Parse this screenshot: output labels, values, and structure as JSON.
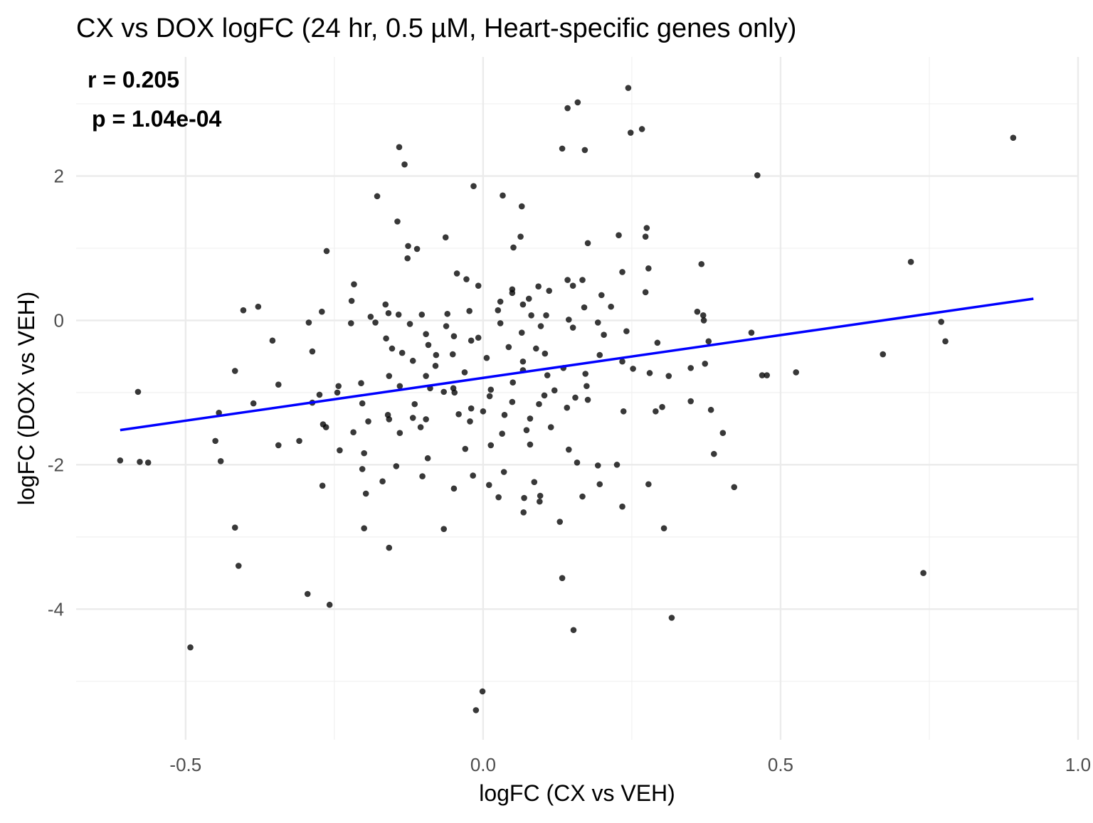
{
  "chart_data": {
    "type": "scatter",
    "title": "CX vs DOX logFC (24 hr, 0.5 µM, Heart-specific genes only)",
    "xlabel": "logFC (CX vs VEH)",
    "ylabel": "logFC (DOX vs VEH)",
    "annotations": [
      "r = 0.205",
      "p = 1.04e-04"
    ],
    "xlim": [
      -0.684,
      1.0
    ],
    "ylim": [
      -5.81,
      3.65
    ],
    "xticks": [
      -0.5,
      0.0,
      0.5,
      1.0
    ],
    "xtick_labels": [
      "-0.5",
      "0.0",
      "0.5",
      "1.0"
    ],
    "yticks": [
      -4,
      -2,
      0,
      2
    ],
    "ytick_labels": [
      "-4",
      "-2",
      "0",
      "2"
    ],
    "grid": true,
    "point_color": "#000000",
    "fit_line_color": "#0000ff",
    "fit_line": {
      "x": [
        -0.61,
        0.925
      ],
      "y": [
        -1.52,
        0.3
      ]
    },
    "points": [
      [
        0.244,
        3.22
      ],
      [
        0.159,
        3.02
      ],
      [
        0.142,
        2.94
      ],
      [
        0.248,
        2.6
      ],
      [
        0.267,
        2.65
      ],
      [
        0.133,
        2.38
      ],
      [
        0.171,
        2.36
      ],
      [
        0.891,
        2.53
      ],
      [
        -0.141,
        2.4
      ],
      [
        -0.132,
        2.16
      ],
      [
        -0.016,
        1.86
      ],
      [
        0.033,
        1.73
      ],
      [
        -0.178,
        1.72
      ],
      [
        0.065,
        1.58
      ],
      [
        -0.144,
        1.37
      ],
      [
        0.461,
        2.01
      ],
      [
        0.275,
        1.28
      ],
      [
        0.228,
        1.18
      ],
      [
        0.063,
        1.16
      ],
      [
        -0.063,
        1.15
      ],
      [
        0.273,
        1.16
      ],
      [
        0.176,
        1.07
      ],
      [
        -0.126,
        1.03
      ],
      [
        -0.111,
        0.99
      ],
      [
        0.051,
        1.01
      ],
      [
        -0.127,
        0.86
      ],
      [
        -0.263,
        0.96
      ],
      [
        0.367,
        0.78
      ],
      [
        0.719,
        0.81
      ],
      [
        0.278,
        0.72
      ],
      [
        0.234,
        0.67
      ],
      [
        -0.044,
        0.65
      ],
      [
        -0.028,
        0.57
      ],
      [
        0.142,
        0.56
      ],
      [
        0.167,
        0.56
      ],
      [
        -0.217,
        0.5
      ],
      [
        0.151,
        0.48
      ],
      [
        0.093,
        0.47
      ],
      [
        -0.008,
        0.48
      ],
      [
        0.111,
        0.41
      ],
      [
        0.049,
        0.43
      ],
      [
        0.049,
        0.38
      ],
      [
        0.273,
        0.39
      ],
      [
        0.199,
        0.35
      ],
      [
        0.077,
        0.3
      ],
      [
        -0.221,
        0.27
      ],
      [
        -0.164,
        0.22
      ],
      [
        0.029,
        0.26
      ],
      [
        0.067,
        0.22
      ],
      [
        0.215,
        0.19
      ],
      [
        -0.378,
        0.19
      ],
      [
        -0.403,
        0.14
      ],
      [
        0.17,
        0.18
      ],
      [
        -0.271,
        0.12
      ],
      [
        -0.159,
        0.1
      ],
      [
        -0.189,
        0.05
      ],
      [
        -0.103,
        0.08
      ],
      [
        -0.142,
        0.08
      ],
      [
        -0.06,
        0.09
      ],
      [
        -0.023,
        0.13
      ],
      [
        0.025,
        0.14
      ],
      [
        0.36,
        0.12
      ],
      [
        0.37,
        0.07
      ],
      [
        0.106,
        0.07
      ],
      [
        0.081,
        0.07
      ],
      [
        0.144,
        0.01
      ],
      [
        0.193,
        -0.03
      ],
      [
        0.029,
        -0.04
      ],
      [
        0.371,
        0.0
      ],
      [
        -0.293,
        -0.03
      ],
      [
        -0.222,
        -0.04
      ],
      [
        -0.181,
        -0.03
      ],
      [
        -0.123,
        -0.05
      ],
      [
        -0.062,
        -0.08
      ],
      [
        0.77,
        -0.02
      ],
      [
        0.151,
        -0.1
      ],
      [
        0.097,
        -0.08
      ],
      [
        0.451,
        -0.17
      ],
      [
        0.241,
        -0.15
      ],
      [
        0.203,
        -0.2
      ],
      [
        -0.096,
        -0.19
      ],
      [
        0.065,
        -0.17
      ],
      [
        -0.049,
        -0.22
      ],
      [
        -0.008,
        -0.24
      ],
      [
        -0.354,
        -0.28
      ],
      [
        -0.163,
        -0.25
      ],
      [
        -0.02,
        -0.28
      ],
      [
        0.379,
        -0.29
      ],
      [
        0.777,
        -0.29
      ],
      [
        0.293,
        -0.31
      ],
      [
        -0.092,
        -0.34
      ],
      [
        0.043,
        -0.37
      ],
      [
        -0.153,
        -0.39
      ],
      [
        0.089,
        -0.39
      ],
      [
        -0.287,
        -0.43
      ],
      [
        -0.136,
        -0.45
      ],
      [
        0.104,
        -0.46
      ],
      [
        -0.051,
        -0.47
      ],
      [
        0.672,
        -0.47
      ],
      [
        -0.079,
        -0.48
      ],
      [
        0.196,
        -0.48
      ],
      [
        0.006,
        -0.52
      ],
      [
        -0.118,
        -0.56
      ],
      [
        0.234,
        -0.57
      ],
      [
        0.067,
        -0.57
      ],
      [
        0.373,
        -0.6
      ],
      [
        -0.08,
        -0.63
      ],
      [
        0.135,
        -0.66
      ],
      [
        0.349,
        -0.66
      ],
      [
        0.252,
        -0.67
      ],
      [
        -0.417,
        -0.7
      ],
      [
        -0.031,
        -0.72
      ],
      [
        0.067,
        -0.69
      ],
      [
        0.526,
        -0.72
      ],
      [
        0.28,
        -0.73
      ],
      [
        0.469,
        -0.76
      ],
      [
        0.477,
        -0.76
      ],
      [
        0.312,
        -0.77
      ],
      [
        -0.158,
        -0.77
      ],
      [
        -0.096,
        -0.77
      ],
      [
        0.108,
        -0.76
      ],
      [
        0.172,
        -0.74
      ],
      [
        0.05,
        -0.86
      ],
      [
        -0.344,
        -0.89
      ],
      [
        -0.243,
        -0.91
      ],
      [
        -0.14,
        -0.91
      ],
      [
        0.174,
        -0.91
      ],
      [
        -0.205,
        -0.87
      ],
      [
        -0.089,
        -0.94
      ],
      [
        -0.05,
        -0.94
      ],
      [
        0.013,
        -0.96
      ],
      [
        -0.066,
        -0.99
      ],
      [
        0.12,
        -0.97
      ],
      [
        -0.245,
        -1.0
      ],
      [
        -0.275,
        -1.03
      ],
      [
        -0.58,
        -0.99
      ],
      [
        -0.048,
        -1.0
      ],
      [
        0.011,
        -1.05
      ],
      [
        0.103,
        -1.04
      ],
      [
        0.155,
        -1.07
      ],
      [
        0.176,
        -1.1
      ],
      [
        -0.386,
        -1.15
      ],
      [
        -0.287,
        -1.14
      ],
      [
        0.349,
        -1.12
      ],
      [
        -0.203,
        -1.15
      ],
      [
        0.049,
        -1.13
      ],
      [
        -0.115,
        -1.16
      ],
      [
        0.094,
        -1.16
      ],
      [
        0.301,
        -1.2
      ],
      [
        0.383,
        -1.24
      ],
      [
        0.141,
        -1.21
      ],
      [
        -0.02,
        -1.22
      ],
      [
        0.0,
        -1.26
      ],
      [
        0.29,
        -1.26
      ],
      [
        0.236,
        -1.26
      ],
      [
        -0.444,
        -1.28
      ],
      [
        -0.041,
        -1.3
      ],
      [
        -0.16,
        -1.31
      ],
      [
        0.036,
        -1.31
      ],
      [
        -0.118,
        -1.35
      ],
      [
        -0.158,
        -1.37
      ],
      [
        -0.096,
        -1.37
      ],
      [
        -0.193,
        -1.4
      ],
      [
        0.079,
        -1.36
      ],
      [
        -0.022,
        -1.4
      ],
      [
        -0.269,
        -1.44
      ],
      [
        -0.264,
        -1.48
      ],
      [
        -0.105,
        -1.48
      ],
      [
        0.114,
        -1.48
      ],
      [
        0.403,
        -1.56
      ],
      [
        -0.218,
        -1.55
      ],
      [
        -0.14,
        -1.56
      ],
      [
        0.032,
        -1.57
      ],
      [
        0.073,
        -1.52
      ],
      [
        -0.45,
        -1.67
      ],
      [
        -0.309,
        -1.67
      ],
      [
        -0.344,
        -1.73
      ],
      [
        0.079,
        -1.72
      ],
      [
        0.013,
        -1.73
      ],
      [
        -0.03,
        -1.78
      ],
      [
        -0.241,
        -1.8
      ],
      [
        0.144,
        -1.79
      ],
      [
        0.388,
        -1.85
      ],
      [
        -0.2,
        -1.84
      ],
      [
        -0.093,
        -1.91
      ],
      [
        -0.61,
        -1.94
      ],
      [
        -0.577,
        -1.96
      ],
      [
        -0.563,
        -1.97
      ],
      [
        -0.441,
        -1.95
      ],
      [
        -0.146,
        -2.02
      ],
      [
        0.158,
        -1.97
      ],
      [
        0.193,
        -2.01
      ],
      [
        0.225,
        -2.0
      ],
      [
        -0.203,
        -2.06
      ],
      [
        0.035,
        -2.1
      ],
      [
        -0.017,
        -2.15
      ],
      [
        -0.102,
        -2.16
      ],
      [
        -0.169,
        -2.23
      ],
      [
        0.086,
        -2.24
      ],
      [
        0.196,
        -2.27
      ],
      [
        0.01,
        -2.28
      ],
      [
        0.278,
        -2.27
      ],
      [
        -0.27,
        -2.29
      ],
      [
        0.422,
        -2.31
      ],
      [
        -0.049,
        -2.33
      ],
      [
        -0.197,
        -2.4
      ],
      [
        0.096,
        -2.43
      ],
      [
        0.026,
        -2.45
      ],
      [
        0.069,
        -2.46
      ],
      [
        0.167,
        -2.44
      ],
      [
        0.095,
        -2.51
      ],
      [
        0.234,
        -2.58
      ],
      [
        0.068,
        -2.66
      ],
      [
        0.129,
        -2.79
      ],
      [
        -0.417,
        -2.87
      ],
      [
        -0.2,
        -2.88
      ],
      [
        -0.066,
        -2.89
      ],
      [
        0.304,
        -2.88
      ],
      [
        -0.158,
        -3.15
      ],
      [
        0.74,
        -3.5
      ],
      [
        -0.411,
        -3.4
      ],
      [
        0.133,
        -3.57
      ],
      [
        -0.295,
        -3.79
      ],
      [
        -0.258,
        -3.94
      ],
      [
        0.317,
        -4.12
      ],
      [
        0.152,
        -4.29
      ],
      [
        -0.492,
        -4.53
      ],
      [
        -0.001,
        -5.14
      ],
      [
        -0.012,
        -5.4
      ]
    ]
  }
}
